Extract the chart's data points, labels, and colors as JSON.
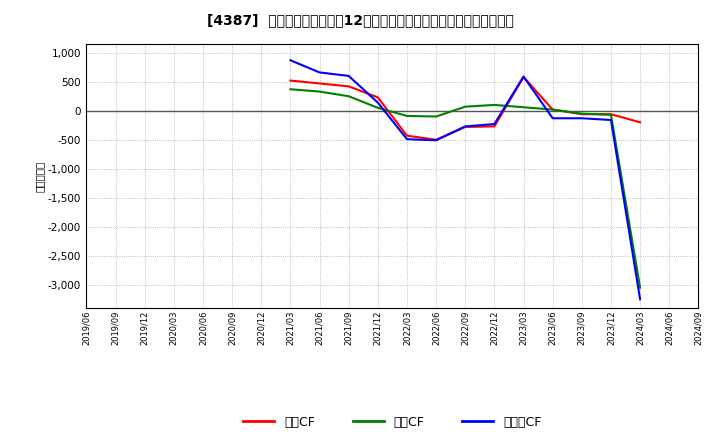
{
  "title": "[4387]  キャッシュフローの12か月移動合計の対前年同期増減額の推移",
  "ylabel": "（百万円）",
  "ylim": [
    -3400,
    1150
  ],
  "yticks": [
    1000,
    500,
    0,
    -500,
    -1000,
    -1500,
    -2000,
    -2500,
    -3000
  ],
  "background_color": "#ffffff",
  "plot_bg_color": "#ffffff",
  "grid_color": "#aaaaaa",
  "x_labels": [
    "2019/06",
    "2019/09",
    "2019/12",
    "2020/03",
    "2020/06",
    "2020/09",
    "2020/12",
    "2021/03",
    "2021/06",
    "2021/09",
    "2021/12",
    "2022/03",
    "2022/06",
    "2022/09",
    "2022/12",
    "2023/03",
    "2023/06",
    "2023/09",
    "2023/12",
    "2024/03",
    "2024/06",
    "2024/09"
  ],
  "eigyo_color": "#ff0000",
  "eigyo_values": [
    null,
    null,
    null,
    null,
    null,
    null,
    null,
    520,
    470,
    420,
    230,
    -430,
    -500,
    -280,
    -270,
    580,
    20,
    -60,
    -60,
    -200,
    null,
    null
  ],
  "toshi_color": "#008000",
  "toshi_values": [
    null,
    null,
    null,
    null,
    null,
    null,
    null,
    370,
    330,
    250,
    50,
    -90,
    -100,
    70,
    100,
    60,
    20,
    -50,
    -70,
    -3050,
    null,
    null
  ],
  "free_color": "#0000ff",
  "free_values": [
    null,
    null,
    null,
    null,
    null,
    null,
    null,
    870,
    660,
    600,
    140,
    -490,
    -510,
    -270,
    -230,
    590,
    -130,
    -130,
    -160,
    -3250,
    null,
    null
  ],
  "legend_labels": [
    "営業CF",
    "投資CF",
    "フリーCF"
  ],
  "legend_colors": [
    "#ff0000",
    "#008000",
    "#0000ff"
  ]
}
